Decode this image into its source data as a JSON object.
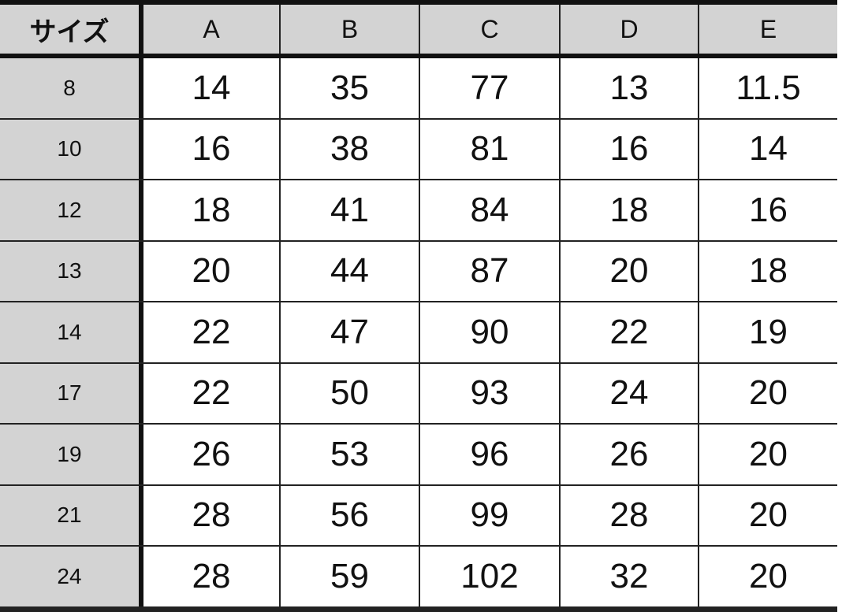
{
  "table": {
    "headers": [
      "サイズ",
      "A",
      "B",
      "C",
      "D",
      "E"
    ],
    "rows": [
      [
        "8",
        "14",
        "35",
        "77",
        "13",
        "11.5"
      ],
      [
        "10",
        "16",
        "38",
        "81",
        "16",
        "14"
      ],
      [
        "12",
        "18",
        "41",
        "84",
        "18",
        "16"
      ],
      [
        "13",
        "20",
        "44",
        "87",
        "20",
        "18"
      ],
      [
        "14",
        "22",
        "47",
        "90",
        "22",
        "19"
      ],
      [
        "17",
        "22",
        "50",
        "93",
        "24",
        "20"
      ],
      [
        "19",
        "26",
        "53",
        "96",
        "26",
        "20"
      ],
      [
        "21",
        "28",
        "56",
        "99",
        "28",
        "20"
      ],
      [
        "24",
        "28",
        "59",
        "102",
        "32",
        "20"
      ]
    ],
    "colors": {
      "header_bg": "#d3d3d3",
      "cell_bg": "#ffffff",
      "border": "#111111"
    }
  }
}
